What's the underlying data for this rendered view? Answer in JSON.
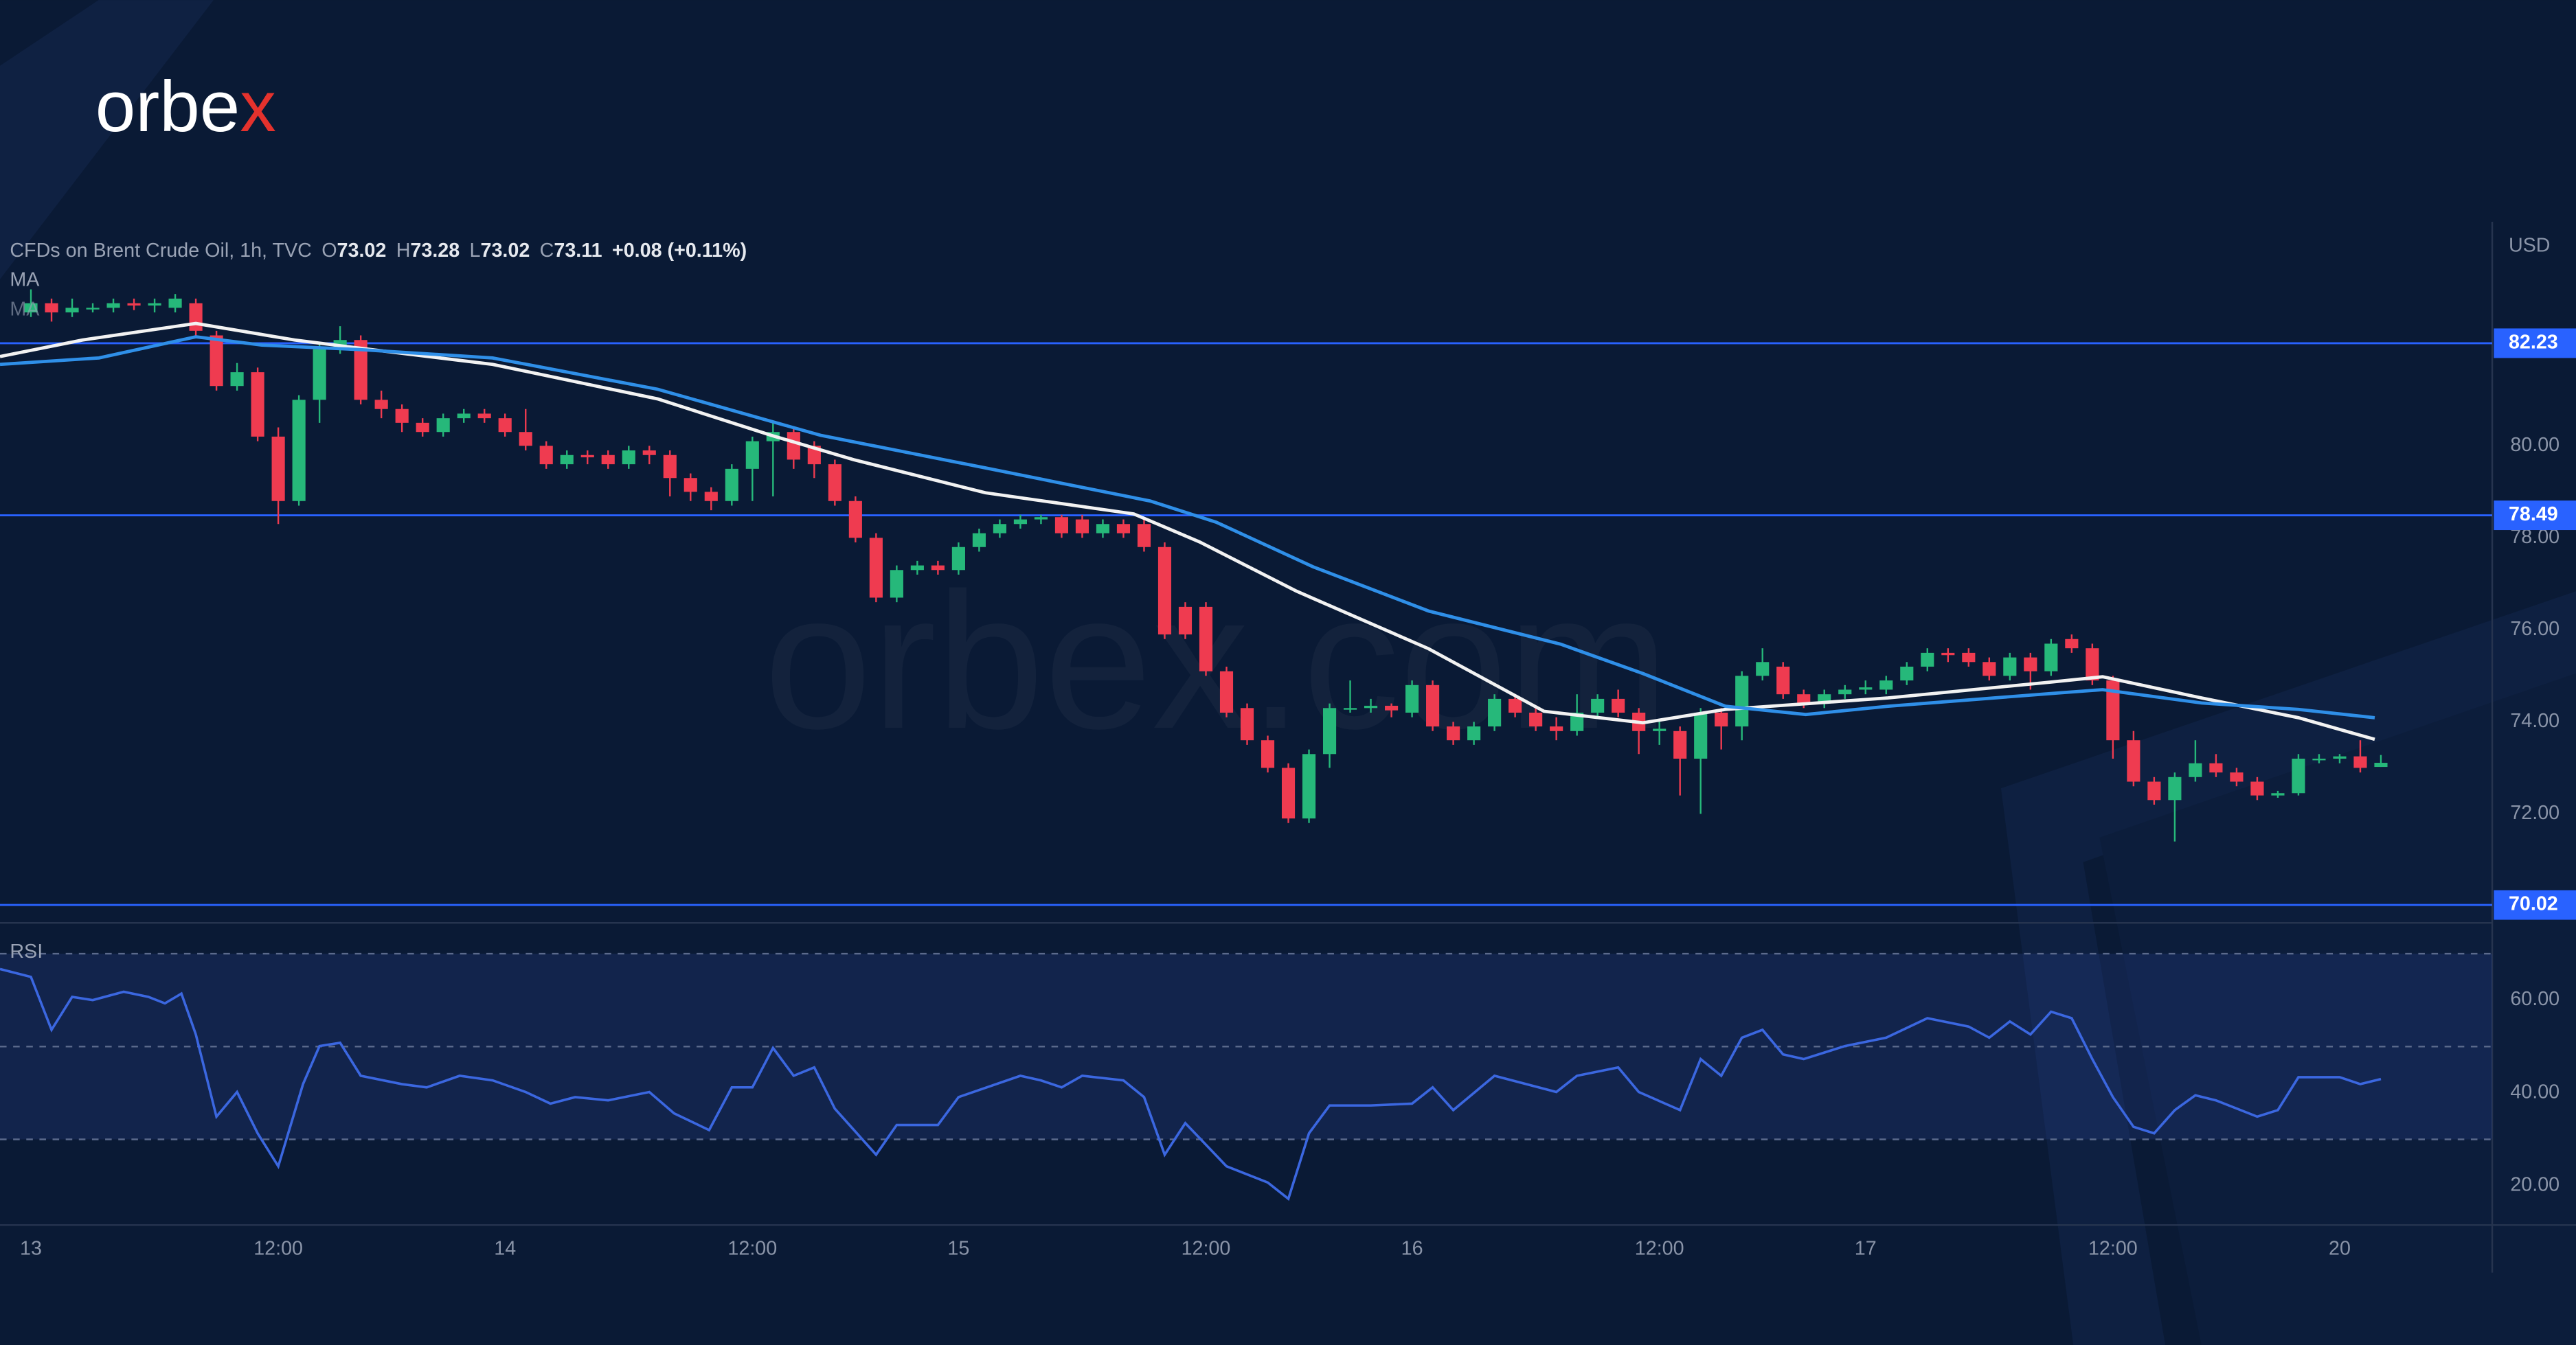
{
  "logo": {
    "main": "orbe",
    "accent": "x"
  },
  "watermark": "orbex.com",
  "chart_data": [
    {
      "type": "candlestick",
      "title": "CFDs on Brent Crude Oil, 1h, TVC",
      "ohlc_labels": [
        "O",
        "H",
        "L",
        "C"
      ],
      "change_label": "+0.08 (+0.11%)",
      "currency": "USD",
      "up_color": "#26b87a",
      "down_color": "#ef3b50",
      "x": [
        0,
        1,
        2,
        3,
        4,
        5,
        6,
        7,
        8,
        9,
        10,
        11,
        12,
        13,
        14,
        15,
        16,
        17,
        18,
        19,
        20,
        21,
        22,
        23,
        24,
        25,
        26,
        27,
        28,
        29,
        30,
        31,
        32,
        33,
        34,
        35,
        36,
        37,
        38,
        39,
        40,
        41,
        42,
        43,
        44,
        45,
        46,
        47,
        48,
        49,
        50,
        51,
        52,
        53,
        54,
        55,
        56,
        57,
        58,
        59,
        60,
        61,
        62,
        63,
        64,
        65,
        66,
        67,
        68,
        69,
        70,
        71,
        72,
        73,
        74,
        75,
        76,
        77,
        78,
        79,
        80,
        81,
        82,
        83,
        84,
        85,
        86,
        87,
        88,
        89,
        90,
        91,
        92,
        93,
        94,
        95,
        96,
        97,
        98,
        99,
        100,
        101,
        102,
        103,
        104,
        105,
        106,
        107,
        108,
        109,
        110,
        111,
        112,
        113,
        114
      ],
      "open": [
        82.9,
        83.1,
        82.9,
        83.0,
        83.0,
        83.1,
        83.05,
        83.0,
        83.1,
        82.4,
        81.3,
        81.6,
        80.2,
        78.8,
        81.0,
        82.1,
        82.3,
        81.0,
        80.8,
        80.5,
        80.3,
        80.6,
        80.7,
        80.6,
        80.3,
        80.0,
        79.6,
        79.8,
        79.8,
        79.6,
        79.9,
        79.8,
        79.3,
        79.0,
        78.8,
        79.5,
        80.1,
        80.3,
        80.0,
        79.6,
        78.8,
        78.0,
        76.7,
        77.3,
        77.4,
        77.3,
        77.8,
        78.1,
        78.3,
        78.4,
        78.45,
        78.4,
        78.1,
        78.3,
        78.3,
        77.8,
        76.5,
        76.5,
        75.1,
        74.3,
        73.6,
        73.0,
        71.9,
        73.3,
        74.3,
        74.3,
        74.35,
        74.2,
        74.8,
        73.9,
        73.6,
        73.9,
        74.5,
        74.2,
        73.9,
        73.8,
        74.2,
        74.5,
        74.2,
        73.8,
        73.8,
        73.2,
        74.2,
        73.9,
        75.0,
        75.2,
        74.6,
        74.4,
        74.6,
        74.7,
        74.7,
        74.9,
        75.2,
        75.5,
        75.5,
        75.3,
        75.0,
        75.4,
        75.1,
        75.8,
        75.6,
        74.9,
        73.6,
        72.7,
        72.3,
        72.8,
        73.1,
        72.9,
        72.7,
        72.4,
        72.45,
        73.2,
        73.2,
        73.25,
        73.02
      ],
      "high": [
        83.4,
        83.2,
        83.2,
        83.1,
        83.2,
        83.2,
        83.2,
        83.3,
        83.2,
        82.5,
        81.8,
        81.7,
        80.4,
        81.1,
        82.2,
        82.6,
        82.4,
        81.2,
        80.9,
        80.6,
        80.7,
        80.8,
        80.8,
        80.7,
        80.8,
        80.1,
        79.9,
        79.9,
        79.9,
        80.0,
        80.0,
        79.9,
        79.4,
        79.1,
        79.6,
        80.2,
        80.5,
        80.4,
        80.1,
        79.7,
        78.9,
        78.1,
        77.4,
        77.5,
        77.5,
        77.9,
        78.2,
        78.4,
        78.5,
        78.5,
        78.5,
        78.5,
        78.4,
        78.4,
        78.4,
        77.9,
        76.6,
        76.6,
        75.2,
        74.4,
        73.7,
        73.1,
        73.4,
        74.4,
        74.9,
        74.5,
        74.4,
        74.9,
        74.9,
        74.0,
        74.0,
        74.6,
        74.6,
        74.3,
        74.1,
        74.6,
        74.6,
        74.7,
        74.3,
        74.0,
        73.9,
        74.3,
        74.3,
        75.1,
        75.6,
        75.3,
        74.7,
        74.7,
        74.8,
        74.9,
        75.0,
        75.3,
        75.6,
        75.6,
        75.6,
        75.4,
        75.5,
        75.5,
        75.8,
        75.9,
        75.7,
        75.0,
        73.8,
        72.8,
        72.9,
        73.6,
        73.3,
        73.0,
        72.8,
        72.5,
        73.3,
        73.3,
        73.3,
        73.6,
        73.28
      ],
      "low": [
        82.8,
        82.7,
        82.8,
        82.9,
        82.9,
        82.95,
        82.9,
        82.9,
        82.4,
        81.2,
        81.2,
        80.1,
        78.3,
        78.7,
        80.5,
        82.0,
        80.9,
        80.6,
        80.3,
        80.2,
        80.2,
        80.5,
        80.5,
        80.2,
        79.9,
        79.5,
        79.5,
        79.6,
        79.5,
        79.5,
        79.6,
        78.9,
        78.8,
        78.6,
        78.7,
        78.8,
        78.9,
        79.5,
        79.3,
        78.7,
        77.9,
        76.6,
        76.6,
        77.2,
        77.2,
        77.2,
        77.7,
        78.0,
        78.2,
        78.3,
        78.0,
        78.0,
        78.0,
        78.0,
        77.7,
        75.8,
        75.8,
        75.0,
        74.1,
        73.5,
        72.9,
        71.8,
        71.8,
        73.0,
        74.2,
        74.2,
        74.1,
        74.1,
        73.8,
        73.5,
        73.5,
        73.8,
        74.1,
        73.8,
        73.6,
        73.7,
        74.1,
        74.1,
        73.3,
        73.5,
        72.4,
        72.0,
        73.4,
        73.6,
        74.9,
        74.5,
        74.3,
        74.3,
        74.5,
        74.6,
        74.6,
        74.8,
        75.1,
        75.3,
        75.2,
        74.9,
        74.9,
        74.7,
        75.0,
        75.5,
        74.8,
        73.2,
        72.6,
        72.2,
        71.4,
        72.7,
        72.8,
        72.6,
        72.3,
        72.35,
        72.4,
        73.1,
        73.1,
        72.9,
        73.02
      ],
      "close": [
        83.1,
        82.9,
        83.0,
        83.0,
        83.1,
        83.05,
        83.1,
        83.2,
        82.5,
        81.3,
        81.6,
        80.2,
        78.8,
        81.0,
        82.1,
        82.3,
        81.0,
        80.8,
        80.5,
        80.3,
        80.6,
        80.7,
        80.6,
        80.3,
        80.0,
        79.6,
        79.8,
        79.75,
        79.6,
        79.9,
        79.8,
        79.3,
        79.0,
        78.8,
        79.5,
        80.1,
        80.3,
        79.7,
        79.6,
        78.8,
        78.0,
        76.7,
        77.3,
        77.4,
        77.3,
        77.8,
        78.1,
        78.3,
        78.4,
        78.45,
        78.1,
        78.1,
        78.3,
        78.1,
        77.8,
        75.9,
        75.9,
        75.1,
        74.2,
        73.6,
        73.0,
        71.9,
        73.3,
        74.3,
        74.3,
        74.35,
        74.25,
        74.8,
        73.9,
        73.6,
        73.9,
        74.5,
        74.2,
        73.9,
        73.8,
        74.2,
        74.5,
        74.2,
        73.8,
        73.85,
        73.2,
        74.2,
        73.9,
        75.0,
        75.3,
        74.6,
        74.4,
        74.6,
        74.7,
        74.75,
        74.9,
        75.2,
        75.5,
        75.45,
        75.3,
        75.0,
        75.4,
        75.1,
        75.7,
        75.6,
        74.9,
        73.6,
        72.7,
        72.3,
        72.8,
        73.1,
        72.9,
        72.7,
        72.4,
        72.45,
        73.2,
        73.2,
        73.25,
        73.0,
        73.11
      ],
      "series": [
        {
          "name": "MA",
          "color": "#f2f2f2",
          "x": [
            -1.5,
            2.5,
            8,
            12.8,
            16,
            22.4,
            30.4,
            35.9,
            39.9,
            46.3,
            53.5,
            56.7,
            61.4,
            67.8,
            73.4,
            78.2,
            82.2,
            90.1,
            98.1,
            100.5,
            105.3,
            110,
            113.7
          ],
          "values": [
            81.94,
            82.3,
            82.66,
            82.3,
            82.12,
            81.77,
            81.02,
            80.23,
            79.7,
            78.98,
            78.52,
            77.91,
            76.84,
            75.59,
            74.23,
            73.98,
            74.27,
            74.52,
            74.87,
            74.98,
            74.52,
            74.09,
            73.62
          ]
        },
        {
          "name": "MA",
          "color": "#2f8fe8",
          "x": [
            -1.5,
            3.3,
            8,
            11.2,
            16,
            22.4,
            30.4,
            38.3,
            46.3,
            54.3,
            57.5,
            62.2,
            67.8,
            74.2,
            78.2,
            82.2,
            86.1,
            90.1,
            98.1,
            100.5,
            105.3,
            110,
            113.7
          ],
          "values": [
            81.77,
            81.91,
            82.37,
            82.19,
            82.09,
            81.91,
            81.23,
            80.23,
            79.52,
            78.8,
            78.34,
            77.37,
            76.41,
            75.69,
            75.05,
            74.34,
            74.16,
            74.34,
            74.62,
            74.7,
            74.41,
            74.27,
            74.09
          ]
        }
      ],
      "levels": [
        82.23,
        78.49,
        70.02
      ],
      "level_color": "#2962ff",
      "xlim": [
        -1.5,
        119.4
      ],
      "ylim": [
        69.63,
        84.87
      ],
      "yticks": [
        {
          "value": 72,
          "label": "72.00"
        },
        {
          "value": 74,
          "label": "74.00"
        },
        {
          "value": 76,
          "label": "76.00"
        },
        {
          "value": 78,
          "label": "78.00"
        },
        {
          "value": 80,
          "label": "80.00"
        }
      ],
      "grid": false
    },
    {
      "type": "line",
      "title": "RSI",
      "color": "#3b67e0",
      "x": [
        -1.5,
        0,
        1,
        2,
        3,
        4.5,
        5.7,
        6.5,
        7.3,
        8,
        9,
        10,
        11,
        12,
        13.2,
        14,
        15,
        16,
        18,
        19.2,
        20.8,
        22.4,
        24,
        25.2,
        26.4,
        28,
        30,
        31.2,
        32.9,
        34,
        35,
        36,
        37,
        38,
        39,
        41,
        42,
        44,
        45,
        48,
        49,
        50,
        51,
        53,
        54,
        55,
        56,
        58,
        60,
        61,
        62,
        63,
        65,
        67,
        68,
        69,
        71,
        74,
        75,
        77,
        78,
        80,
        81,
        82,
        83,
        84,
        85,
        86,
        88,
        90,
        92,
        94,
        95,
        96,
        97,
        98,
        99,
        100,
        101,
        102,
        103,
        104,
        105,
        106,
        108,
        109,
        110,
        112,
        113,
        114
      ],
      "values": [
        66.7,
        65.0,
        53.6,
        60.7,
        60.0,
        61.8,
        60.7,
        59.3,
        61.4,
        52.6,
        34.9,
        40.2,
        31.3,
        24.2,
        41.9,
        50.1,
        50.8,
        43.7,
        41.9,
        41.2,
        43.7,
        42.7,
        40.2,
        37.7,
        39.1,
        38.4,
        40.2,
        35.6,
        32.0,
        41.2,
        41.2,
        49.7,
        43.7,
        45.5,
        36.6,
        26.7,
        33.1,
        33.1,
        39.1,
        43.7,
        42.7,
        41.2,
        43.7,
        42.7,
        39.1,
        26.7,
        33.5,
        24.2,
        20.7,
        17.2,
        31.3,
        37.3,
        37.3,
        37.7,
        41.2,
        36.3,
        43.7,
        40.2,
        43.7,
        45.5,
        40.2,
        36.3,
        47.3,
        43.7,
        51.9,
        53.6,
        48.3,
        47.3,
        50.1,
        51.9,
        56.1,
        54.3,
        51.9,
        55.4,
        52.6,
        57.5,
        56.1,
        47.3,
        39.1,
        32.7,
        31.3,
        36.3,
        39.5,
        38.4,
        34.9,
        36.3,
        43.4,
        43.4,
        41.9,
        43.0
      ],
      "band": [
        30,
        70
      ],
      "midline": 50,
      "xlim": [
        -1.5,
        119.4
      ],
      "ylim": [
        11.9,
        73.8
      ],
      "yticks": [
        {
          "value": 20,
          "label": "20.00"
        },
        {
          "value": 40,
          "label": "40.00"
        },
        {
          "value": 60,
          "label": "60.00"
        }
      ],
      "xticks": [
        {
          "value": 0,
          "label": "13"
        },
        {
          "value": 12,
          "label": "12:00"
        },
        {
          "value": 23,
          "label": "14"
        },
        {
          "value": 35,
          "label": "12:00"
        },
        {
          "value": 45,
          "label": "15"
        },
        {
          "value": 57,
          "label": "12:00"
        },
        {
          "value": 67,
          "label": "16"
        },
        {
          "value": 79,
          "label": "12:00"
        },
        {
          "value": 89,
          "label": "17"
        },
        {
          "value": 101,
          "label": "12:00"
        },
        {
          "value": 112,
          "label": "20"
        }
      ]
    }
  ]
}
